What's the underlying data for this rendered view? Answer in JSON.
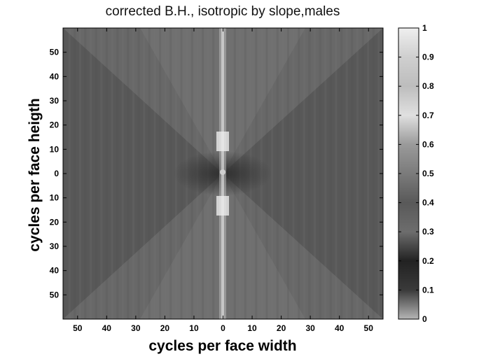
{
  "chart_data": {
    "type": "heatmap",
    "title": "corrected B.H., isotropic by slope,males",
    "xlabel": "cycles per face width",
    "ylabel": "cycles per face heigth",
    "x_tick_labels": [
      "50",
      "40",
      "30",
      "20",
      "10",
      "0",
      "10",
      "20",
      "30",
      "40",
      "50"
    ],
    "y_tick_labels": [
      "50",
      "40",
      "30",
      "20",
      "10",
      "0",
      "10",
      "20",
      "30",
      "40",
      "50"
    ],
    "x_ticks": [
      -50,
      -40,
      -30,
      -20,
      -10,
      0,
      10,
      20,
      30,
      40,
      50
    ],
    "y_ticks": [
      50,
      40,
      30,
      20,
      10,
      0,
      -10,
      -20,
      -30,
      -40,
      -50
    ],
    "xlim": [
      -55,
      55
    ],
    "ylim": [
      -60,
      60
    ],
    "colorscale": "gray",
    "colorbar": {
      "ticks": [
        "0",
        "0.1",
        "0.2",
        "0.3",
        "0.4",
        "0.5",
        "0.6",
        "0.7",
        "0.8",
        "0.9",
        "1"
      ],
      "min": 0,
      "max": 1
    },
    "description_values": {
      "background_level": 0.45,
      "dark_region_level": 0.3,
      "central_ridge_level": 0.8
    }
  }
}
